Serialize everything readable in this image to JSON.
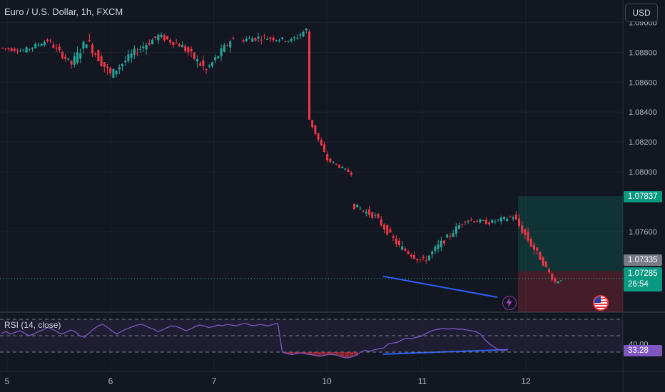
{
  "header": {
    "title": "Euro / U.S. Dollar, 1h, FXCM",
    "currency_button": "USD"
  },
  "indicator": {
    "label": "RSI (14, close)",
    "levels": [
      70,
      50,
      30
    ],
    "current_label": "33.28",
    "partial_tick_label": "40.00"
  },
  "badges": {
    "target": "1.07837",
    "entry": "1.07335",
    "last_price": "1.07285",
    "countdown": "26:54"
  },
  "colors": {
    "up": "#26a69a",
    "down": "#f23645",
    "rsi_line": "#7e57c2",
    "divergence_line": "#2962ff",
    "background": "#131722"
  },
  "icons": {
    "event_flash": "lightning-icon",
    "event_flag": "us-flag-icon"
  },
  "chart_data": {
    "type": "candlestick",
    "title": "Euro / U.S. Dollar, 1h, FXCM",
    "price_axis": {
      "ticks": [
        "1.09000",
        "1.08800",
        "1.08600",
        "1.08400",
        "1.08200",
        "1.08000",
        "1.07600"
      ],
      "range": [
        1.0706,
        1.0915
      ]
    },
    "x_axis": {
      "ticks": [
        "5",
        "6",
        "7",
        "10",
        "11",
        "12"
      ]
    },
    "position_tool": {
      "entry": 1.07335,
      "target": 1.07837,
      "stop": 1.07045
    },
    "last_price": 1.07285,
    "segments": [
      {
        "from": 1.0883,
        "to": 1.0881,
        "bars": 8,
        "vol": 0.00025
      },
      {
        "from": 1.0881,
        "to": 1.0888,
        "bars": 8,
        "vol": 0.0003
      },
      {
        "from": 1.0888,
        "to": 1.0872,
        "bars": 8,
        "vol": 0.0004
      },
      {
        "from": 1.0872,
        "to": 1.0888,
        "bars": 5,
        "vol": 0.0006
      },
      {
        "from": 1.0888,
        "to": 1.0865,
        "bars": 8,
        "vol": 0.0007
      },
      {
        "from": 1.0865,
        "to": 1.088,
        "bars": 8,
        "vol": 0.0005
      },
      {
        "from": 1.088,
        "to": 1.0891,
        "bars": 8,
        "vol": 0.0005
      },
      {
        "from": 1.0891,
        "to": 1.0884,
        "bars": 8,
        "vol": 0.0004
      },
      {
        "from": 1.0884,
        "to": 1.0868,
        "bars": 8,
        "vol": 0.0006
      },
      {
        "from": 1.0868,
        "to": 1.0888,
        "bars": 8,
        "vol": 0.0005
      },
      {
        "from": 1.0888,
        "to": 1.089,
        "bars": 8,
        "vol": 0.0004
      },
      {
        "from": 1.089,
        "to": 1.0888,
        "bars": 10,
        "vol": 0.0003
      },
      {
        "from": 1.0888,
        "to": 1.0895,
        "bars": 5,
        "vol": 0.0004
      },
      {
        "from": 1.0895,
        "to": 1.0835,
        "bars": 1,
        "vol": 0.0003
      },
      {
        "from": 1.0835,
        "to": 1.0808,
        "bars": 6,
        "vol": 0.0003
      },
      {
        "from": 1.0808,
        "to": 1.0799,
        "bars": 8,
        "vol": 0.0002
      },
      {
        "from": 1.0778,
        "to": 1.077,
        "bars": 8,
        "vol": 0.0004
      },
      {
        "from": 1.077,
        "to": 1.075,
        "bars": 8,
        "vol": 0.0004
      },
      {
        "from": 1.075,
        "to": 1.074,
        "bars": 8,
        "vol": 0.0005
      },
      {
        "from": 1.074,
        "to": 1.0752,
        "bars": 6,
        "vol": 0.0005
      },
      {
        "from": 1.0752,
        "to": 1.0768,
        "bars": 8,
        "vol": 0.0004
      },
      {
        "from": 1.0768,
        "to": 1.0766,
        "bars": 8,
        "vol": 0.0003
      },
      {
        "from": 1.0766,
        "to": 1.077,
        "bars": 8,
        "vol": 0.0003
      },
      {
        "from": 1.077,
        "to": 1.0745,
        "bars": 8,
        "vol": 0.0005
      },
      {
        "from": 1.0745,
        "to": 1.0726,
        "bars": 6,
        "vol": 0.0003
      },
      {
        "from": 1.0726,
        "to": 1.0728,
        "bars": 2,
        "vol": 0.0002
      }
    ],
    "rsi": [
      53,
      55,
      52,
      54,
      56,
      53,
      50,
      52,
      55,
      57,
      60,
      58,
      55,
      52,
      54,
      57,
      55,
      50,
      48,
      53,
      58,
      62,
      64,
      60,
      56,
      52,
      55,
      58,
      60,
      62,
      64,
      63,
      60,
      58,
      55,
      57,
      60,
      62,
      61,
      59,
      56,
      58,
      61,
      63,
      62,
      60,
      61,
      63,
      62,
      64,
      63,
      62,
      64,
      65,
      63,
      62,
      64,
      63,
      62,
      64,
      65,
      30,
      28,
      27,
      28,
      29,
      28,
      27,
      26,
      25,
      26,
      27,
      27,
      26,
      24,
      23,
      24,
      26,
      30,
      32,
      31,
      33,
      34,
      35,
      40,
      41,
      42,
      45,
      47,
      46,
      48,
      49,
      52,
      55,
      57,
      58,
      59,
      58,
      59,
      58,
      58,
      57,
      56,
      55,
      52,
      45,
      40,
      36,
      33,
      32,
      33
    ],
    "divergence_lines": [
      {
        "pane": "price",
        "from": 1.073,
        "to": 1.0716
      },
      {
        "pane": "rsi",
        "from": 27.5,
        "to": 33
      }
    ]
  }
}
